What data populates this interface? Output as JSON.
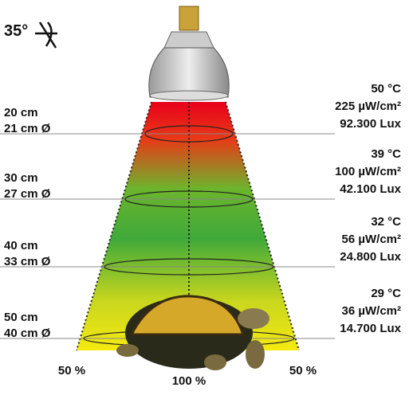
{
  "beam_angle": "35°",
  "levels": [
    {
      "distance": "20 cm",
      "diameter": "21 cm Ø",
      "temperature": "50 °C",
      "uv": "225 µW/cm²",
      "lux": "92.300 Lux"
    },
    {
      "distance": "30 cm",
      "diameter": "27 cm Ø",
      "temperature": "39 °C",
      "uv": "100 µW/cm²",
      "lux": "42.100 Lux"
    },
    {
      "distance": "40 cm",
      "diameter": "33 cm Ø",
      "temperature": "32 °C",
      "uv": "56 µW/cm²",
      "lux": "24.800 Lux"
    },
    {
      "distance": "50 cm",
      "diameter": "40 cm Ø",
      "temperature": "29 °C",
      "uv": "36 µW/cm²",
      "lux": "14.700 Lux"
    }
  ],
  "intensity_labels": {
    "left": "50 %",
    "center": "100 %",
    "right": "50 %"
  }
}
